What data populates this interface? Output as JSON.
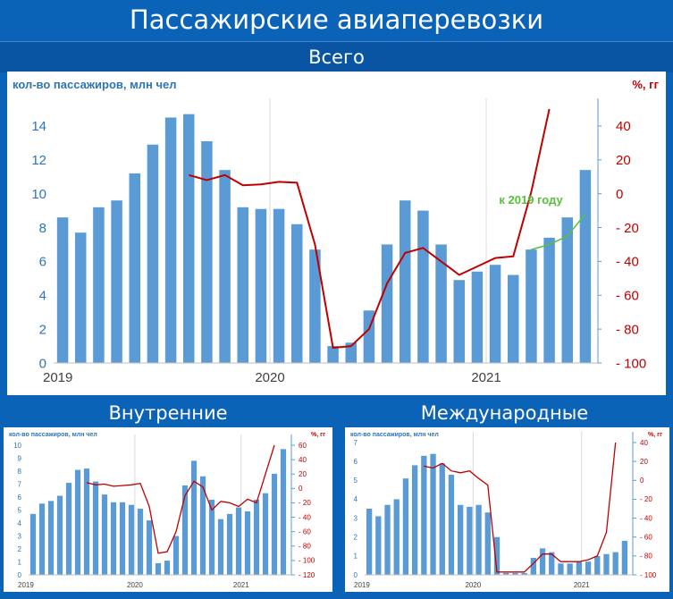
{
  "title": "Пассажирские авиаперевозки",
  "sections": {
    "all": "Всего",
    "domestic": "Внутренние",
    "international": "Международные"
  },
  "colors": {
    "bar": "#5b9bd5",
    "line": "#c00000",
    "left_axis": "#2e75b6",
    "right_axis": "#c00000",
    "annotation": "#55c23a"
  },
  "chart_data": [
    {
      "id": "total",
      "type": "bar",
      "title": "Всего",
      "ylabel_left": "кол-во пассажиров, млн чел",
      "ylabel_right": "%, гг",
      "x_tick_labels": [
        "2019",
        "2020",
        "2021"
      ],
      "ylim_left": [
        0,
        15
      ],
      "ylim_right": [
        -100,
        50
      ],
      "left_ticks": [
        0,
        2,
        4,
        6,
        8,
        10,
        12,
        14
      ],
      "right_ticks": [
        -100,
        -80,
        -60,
        -40,
        -20,
        0,
        20,
        40
      ],
      "grid": "vertical",
      "series": [
        {
          "name": "кол-во пассажиров",
          "type": "bar",
          "axis": "left",
          "values": [
            8.6,
            7.7,
            9.2,
            9.6,
            11.2,
            12.9,
            14.5,
            14.7,
            13.1,
            11.4,
            9.2,
            9.1,
            9.1,
            8.2,
            6.7,
            1.0,
            1.2,
            3.1,
            7.0,
            9.6,
            9.0,
            7.0,
            4.9,
            5.4,
            5.8,
            5.2,
            6.7,
            7.4,
            8.6,
            11.4
          ]
        },
        {
          "name": "%, гг",
          "type": "line",
          "axis": "right",
          "values": [
            null,
            null,
            null,
            null,
            null,
            null,
            null,
            11,
            8,
            11,
            5,
            5.5,
            7,
            6.5,
            -30,
            -91,
            -90,
            -80,
            -53,
            -35,
            -32,
            -40,
            -48,
            -43,
            -38,
            -37,
            1,
            50,
            null,
            null
          ]
        }
      ],
      "annotations": [
        {
          "text": "к 2019 году",
          "values_right": [
            -33,
            -30,
            -25,
            -12
          ],
          "start_index": 26
        }
      ]
    },
    {
      "id": "domestic",
      "type": "bar",
      "title": "Внутренние",
      "ylabel_left": "кол-во пассажиров, млн чел",
      "ylabel_right": "%, гг",
      "x_tick_labels": [
        "2019",
        "2020",
        "2021"
      ],
      "ylim_left": [
        0,
        10
      ],
      "ylim_right": [
        -120,
        60
      ],
      "left_ticks": [
        0,
        1,
        2,
        3,
        4,
        5,
        6,
        7,
        8,
        9,
        10
      ],
      "right_ticks": [
        -120,
        -100,
        -80,
        -60,
        -40,
        -20,
        0,
        20,
        40,
        60
      ],
      "grid": "vertical",
      "series": [
        {
          "name": "кол-во пассажиров",
          "type": "bar",
          "axis": "left",
          "values": [
            4.7,
            5.5,
            5.7,
            6.1,
            7.1,
            8.1,
            8.2,
            7.2,
            6.2,
            5.6,
            5.6,
            5.4,
            5.1,
            4.2,
            0.9,
            1.1,
            3.0,
            6.9,
            8.8,
            7.6,
            5.8,
            4.3,
            4.7,
            5.2,
            4.9,
            5.8,
            6.3,
            7.8,
            9.7
          ]
        },
        {
          "name": "%, гг",
          "type": "line",
          "axis": "right",
          "values": [
            null,
            null,
            null,
            null,
            null,
            null,
            8,
            5,
            6,
            3,
            4,
            5,
            7,
            -25,
            -90,
            -88,
            -60,
            -10,
            10,
            2,
            -30,
            -18,
            -20,
            -25,
            -15,
            -20,
            20,
            60,
            null
          ]
        }
      ]
    },
    {
      "id": "international",
      "type": "bar",
      "title": "Международные",
      "ylabel_left": "кол-во пассажиров, млн чел",
      "ylabel_right": "%, гг",
      "x_tick_labels": [
        "2019",
        "2020",
        "2021"
      ],
      "ylim_left": [
        0,
        7
      ],
      "ylim_right": [
        -100,
        40
      ],
      "left_ticks": [
        0,
        1,
        2,
        3,
        4,
        5,
        6,
        7
      ],
      "right_ticks": [
        -100,
        -80,
        -60,
        -40,
        -20,
        0,
        20,
        40
      ],
      "grid": "vertical",
      "series": [
        {
          "name": "кол-во пассажиров",
          "type": "bar",
          "axis": "left",
          "values": [
            3.5,
            3.1,
            3.7,
            4.0,
            5.1,
            5.8,
            6.3,
            6.4,
            5.9,
            5.3,
            3.7,
            3.6,
            3.7,
            3.3,
            2.0,
            0.1,
            0.1,
            0.1,
            0.9,
            1.4,
            1.2,
            0.6,
            0.6,
            0.7,
            0.7,
            1.0,
            1.1,
            1.2,
            1.8
          ]
        },
        {
          "name": "%, гг",
          "type": "line",
          "axis": "right",
          "values": [
            null,
            null,
            null,
            null,
            null,
            null,
            15,
            13,
            18,
            10,
            8,
            10,
            2,
            -5,
            -97,
            -97,
            -97,
            -97,
            -88,
            -78,
            -78,
            -86,
            -86,
            -86,
            -84,
            -80,
            -55,
            40,
            null
          ]
        }
      ]
    }
  ]
}
